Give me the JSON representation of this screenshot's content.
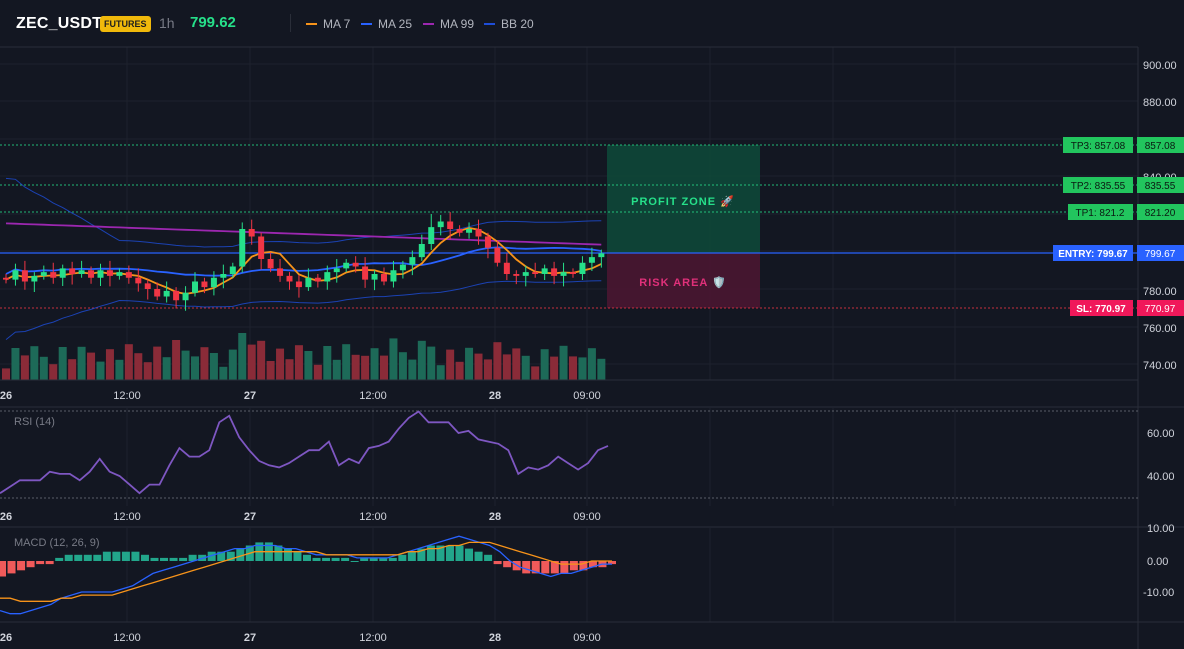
{
  "header": {
    "symbol": "ZEC_USDT",
    "badge": "FUTURES",
    "timeframe": "1h",
    "last_price": "799.62",
    "legend": [
      {
        "label": "MA 7",
        "color": "#f7931a"
      },
      {
        "label": "MA 25",
        "color": "#2962ff"
      },
      {
        "label": "MA 99",
        "color": "#9c27b0"
      },
      {
        "label": "BB 20",
        "color": "#1e4dd8"
      }
    ]
  },
  "colors": {
    "up": "#26e08a",
    "down": "#f23645",
    "vol_up": "#1d6a58",
    "vol_down": "#8a2b38",
    "ma7": "#f7931a",
    "ma25": "#2962ff",
    "ma99": "#9c27b0",
    "bb": "#1e4dd8",
    "rsi": "#7e57c2",
    "macd": "#2962ff",
    "signal": "#f7931a"
  },
  "price_axis": {
    "ticks": [
      "900.00",
      "880.00",
      "840.00",
      "780.00",
      "760.00",
      "740.00"
    ]
  },
  "time_axis": {
    "labels": [
      "26",
      "12:00",
      "27",
      "12:00",
      "28",
      "09:00"
    ]
  },
  "levels": {
    "tp3": {
      "tag": "TP3: 857.08",
      "value": "857.08"
    },
    "tp2": {
      "tag": "TP2: 835.55",
      "value": "835.55"
    },
    "tp1": {
      "tag": "TP1: 821.2",
      "value": "821.20"
    },
    "entry": {
      "tag": "ENTRY: 799.67",
      "value": "799.67"
    },
    "sl": {
      "tag": "SL: 770.97",
      "value": "770.97"
    }
  },
  "zones": {
    "profit": "PROFIT ZONE 🚀",
    "risk": "RISK AREA 🛡️"
  },
  "rsi": {
    "title": "RSI (14)",
    "ticks": [
      "60.00",
      "40.00"
    ],
    "values": [
      32,
      35,
      38,
      38,
      38,
      42,
      41,
      41,
      38,
      42,
      48,
      42,
      40,
      36,
      32,
      36,
      36,
      45,
      53,
      49,
      49,
      52,
      65,
      68,
      58,
      52,
      47,
      45,
      44,
      46,
      49,
      52,
      52,
      56,
      45,
      48,
      46,
      53,
      54,
      56,
      62,
      67,
      70,
      65,
      65,
      65,
      60,
      61,
      57,
      56,
      55,
      52,
      41,
      44,
      43,
      45,
      49,
      46,
      43,
      46,
      52,
      54
    ]
  },
  "macd": {
    "title": "MACD (12, 26, 9)",
    "ticks": [
      "10.00",
      "0.00",
      "-10.00"
    ],
    "hist": [
      -5,
      -4,
      -3,
      -2,
      -1,
      -1,
      1,
      2,
      2,
      2,
      2,
      3,
      3,
      3,
      3,
      2,
      1,
      1,
      1,
      1,
      2,
      2,
      3,
      3,
      3,
      4,
      5,
      6,
      6,
      5,
      4,
      3,
      2,
      1,
      1,
      1,
      1,
      0,
      1,
      1,
      1,
      1,
      2,
      3,
      4,
      5,
      5,
      5,
      5,
      4,
      3,
      2,
      -1,
      -2,
      -3,
      -4,
      -4,
      -4,
      -4,
      -4,
      -3,
      -3,
      -2,
      -2,
      -1
    ],
    "macd_line": [
      -16,
      -17,
      -17,
      -16,
      -15,
      -14,
      -12,
      -11,
      -10,
      -10,
      -10,
      -10,
      -9,
      -8,
      -6,
      -4,
      -3,
      -2,
      -1,
      0,
      1,
      2,
      3,
      4,
      4,
      5,
      5,
      5,
      4,
      4,
      3,
      2,
      2,
      2,
      2,
      1,
      1,
      1,
      1,
      2,
      3,
      4,
      5,
      6,
      7,
      8,
      7,
      6,
      5,
      3,
      0,
      -2,
      -3,
      -4,
      -5,
      -4,
      -4,
      -3,
      -2,
      -1,
      -1
    ],
    "signal_line": [
      -12,
      -12,
      -13,
      -13,
      -13,
      -13,
      -12,
      -12,
      -11,
      -11,
      -11,
      -11,
      -10,
      -9,
      -8,
      -7,
      -6,
      -5,
      -4,
      -3,
      -2,
      -1,
      0,
      1,
      2,
      3,
      3,
      3,
      3,
      3,
      3,
      3,
      2,
      2,
      2,
      2,
      2,
      2,
      2,
      2,
      3,
      3,
      4,
      4,
      5,
      5,
      6,
      6,
      6,
      5,
      4,
      3,
      2,
      1,
      0,
      -1,
      -1,
      -1,
      0,
      0,
      0
    ]
  }
}
